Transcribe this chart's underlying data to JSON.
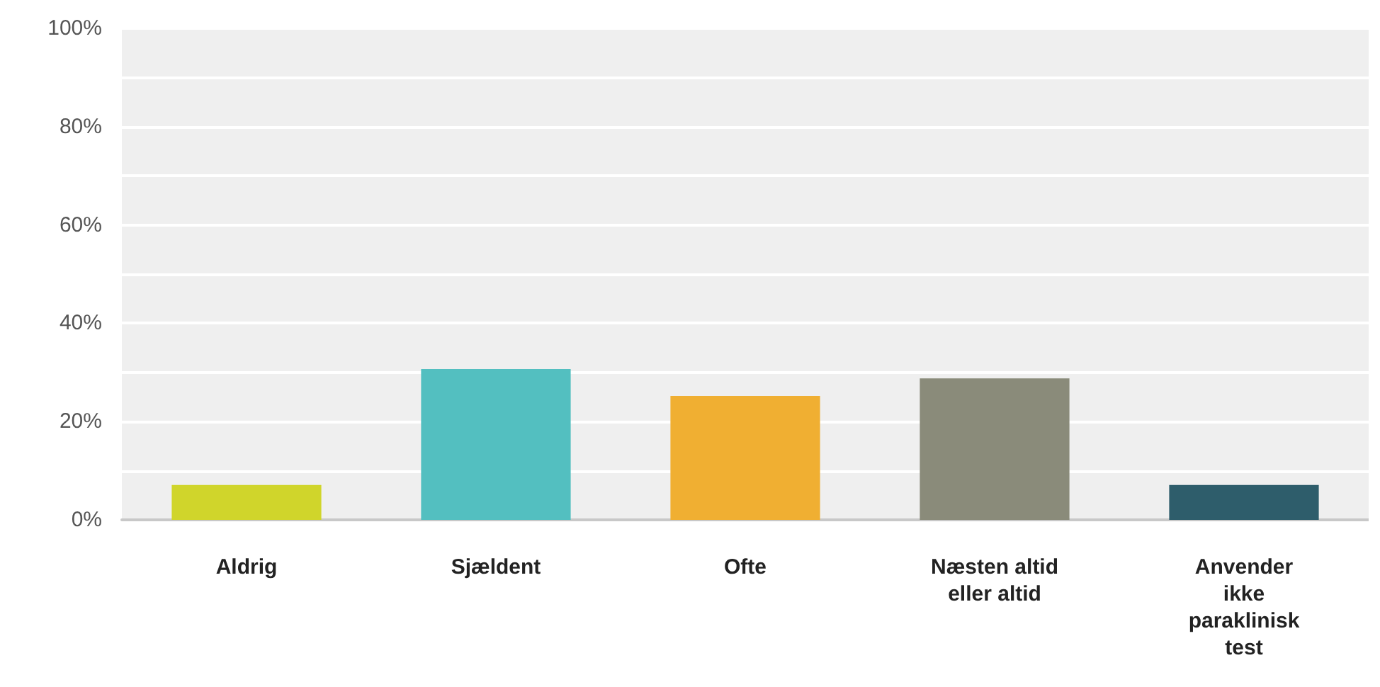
{
  "chart_data": {
    "type": "bar",
    "categories": [
      "Aldrig",
      "Sjældent",
      "Ofte",
      "Næsten altid\neller altid",
      "Anvender\nikke\nparaklinisk\ntest"
    ],
    "values": [
      7.1,
      30.7,
      25.2,
      28.8,
      7.1
    ],
    "colors": [
      "#d0d52b",
      "#53bfc0",
      "#f0af32",
      "#8a8b7a",
      "#2e5d6b"
    ],
    "ylim": [
      0,
      100
    ],
    "yticks": [
      {
        "value": 0,
        "label": "0%"
      },
      {
        "value": 10,
        "label": null
      },
      {
        "value": 20,
        "label": "20%"
      },
      {
        "value": 30,
        "label": null
      },
      {
        "value": 40,
        "label": "40%"
      },
      {
        "value": 50,
        "label": null
      },
      {
        "value": 60,
        "label": "60%"
      },
      {
        "value": 70,
        "label": null
      },
      {
        "value": 80,
        "label": "80%"
      },
      {
        "value": 90,
        "label": null
      },
      {
        "value": 100,
        "label": "100%"
      }
    ],
    "grid": true
  }
}
